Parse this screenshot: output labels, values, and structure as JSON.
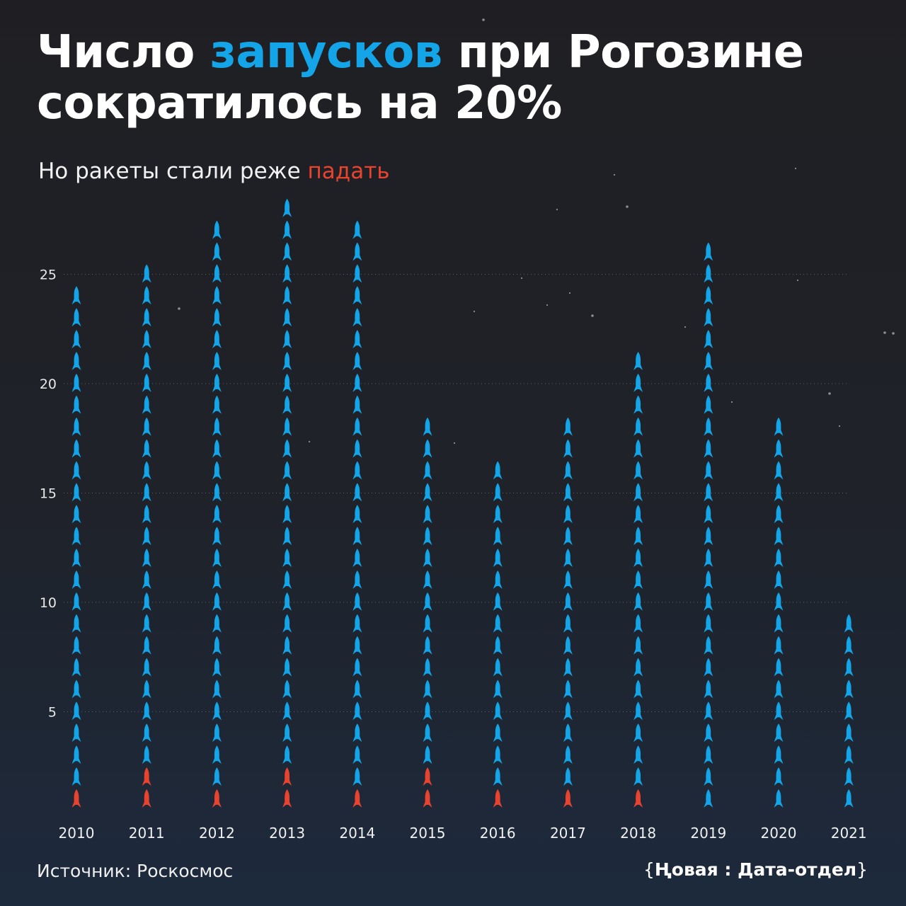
{
  "header": {
    "title_part1": "Число ",
    "title_accent": "запусков",
    "title_part2": " при Рогозине сократилось на 20%",
    "subtitle_part1": "Но ракеты стали реже ",
    "subtitle_accent": "падать"
  },
  "footer": {
    "source": "Источник: Роскосмос",
    "brand_open": "{",
    "brand_name": "Ңовая : Дата-отдел",
    "brand_close": "}"
  },
  "colors": {
    "success": "#14a5e8",
    "failure": "#e8432e",
    "title_accent": "#14a5e8",
    "subtitle_accent": "#e8432e"
  },
  "chart_data": {
    "type": "bar",
    "categories": [
      "2010",
      "2011",
      "2012",
      "2013",
      "2014",
      "2015",
      "2016",
      "2017",
      "2018",
      "2019",
      "2020",
      "2021"
    ],
    "series": [
      {
        "values": [
          1,
          2,
          1,
          2,
          1,
          2,
          1,
          1,
          1,
          0,
          0,
          0
        ]
      },
      {
        "values": [
          23,
          23,
          26,
          26,
          26,
          16,
          15,
          17,
          20,
          26,
          18,
          9
        ]
      }
    ],
    "y_ticks": [
      5,
      10,
      15,
      20,
      25
    ],
    "ylim": [
      0,
      28
    ],
    "grid": true
  }
}
